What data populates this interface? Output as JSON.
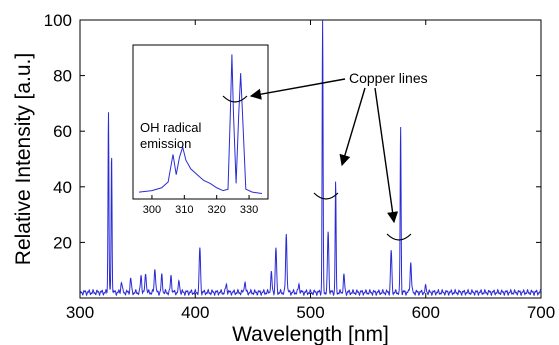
{
  "chart_data": [
    {
      "type": "line",
      "xlabel": "Wavelength [nm]",
      "ylabel": "Relative Intensity [a.u.]",
      "xlim": [
        300,
        700
      ],
      "ylim": [
        0,
        100
      ],
      "xticks": [
        300,
        400,
        500,
        600,
        700
      ],
      "yticks": [
        20,
        40,
        60,
        80,
        100
      ],
      "color": "#2b2bd6",
      "baseline": 2,
      "peaks": [
        {
          "x": 324.7,
          "y": 66
        },
        {
          "x": 327.4,
          "y": 50
        },
        {
          "x": 336,
          "y": 4
        },
        {
          "x": 344,
          "y": 5
        },
        {
          "x": 353,
          "y": 6
        },
        {
          "x": 357,
          "y": 7
        },
        {
          "x": 365,
          "y": 9
        },
        {
          "x": 371,
          "y": 6
        },
        {
          "x": 379,
          "y": 6
        },
        {
          "x": 386,
          "y": 4
        },
        {
          "x": 404,
          "y": 16
        },
        {
          "x": 427,
          "y": 3
        },
        {
          "x": 443,
          "y": 4
        },
        {
          "x": 466,
          "y": 7
        },
        {
          "x": 470,
          "y": 16
        },
        {
          "x": 479,
          "y": 21
        },
        {
          "x": 490,
          "y": 3
        },
        {
          "x": 510.5,
          "y": 100
        },
        {
          "x": 515.3,
          "y": 22
        },
        {
          "x": 521.8,
          "y": 40
        },
        {
          "x": 529,
          "y": 6
        },
        {
          "x": 570,
          "y": 15
        },
        {
          "x": 578.2,
          "y": 60
        },
        {
          "x": 587,
          "y": 11
        },
        {
          "x": 600,
          "y": 2
        }
      ],
      "annotation": "Copper lines"
    },
    {
      "type": "line",
      "label": "OH radical emission",
      "xlim": [
        296,
        334
      ],
      "xticks": [
        300,
        310,
        320,
        330
      ],
      "color": "#2b2bd6",
      "points": [
        [
          296,
          2
        ],
        [
          300,
          3
        ],
        [
          303,
          5
        ],
        [
          305,
          9
        ],
        [
          306.5,
          28
        ],
        [
          307.5,
          14
        ],
        [
          308.5,
          26
        ],
        [
          309.5,
          33
        ],
        [
          310.5,
          24
        ],
        [
          312,
          18
        ],
        [
          314,
          14
        ],
        [
          316,
          10
        ],
        [
          318,
          8
        ],
        [
          320,
          5
        ],
        [
          322,
          3
        ],
        [
          323.5,
          4
        ],
        [
          324.2,
          55
        ],
        [
          324.7,
          97
        ],
        [
          325.2,
          55
        ],
        [
          326,
          8
        ],
        [
          326.8,
          55
        ],
        [
          327.4,
          84
        ],
        [
          328,
          55
        ],
        [
          329,
          4
        ],
        [
          331,
          2
        ],
        [
          334,
          1
        ]
      ]
    }
  ]
}
